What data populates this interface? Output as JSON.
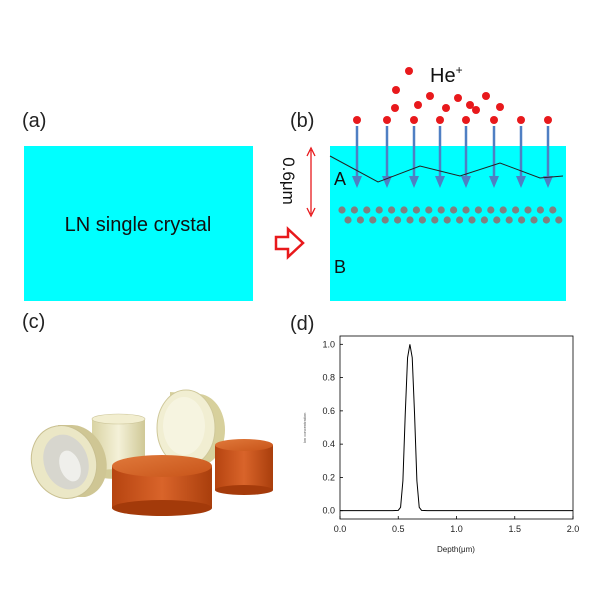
{
  "panels": {
    "a": {
      "label": "(a)",
      "block_text": "LN single crystal",
      "block_color": "#00ffff"
    },
    "b": {
      "label": "(b)",
      "ion_label_main": "He",
      "ion_label_sup": "+",
      "depth_label": "0.6μm",
      "region_a": "A",
      "region_b": "B",
      "block_color": "#00ffff",
      "ion_color": "#e8191c",
      "arrow_color": "#4f7fc3",
      "implant_dot_color": "#808080",
      "depth_arrow_color": "#e8191c"
    },
    "c": {
      "label": "(c)",
      "photo": "lithium-niobate-wafers-photo",
      "colors": {
        "clear": "#e9e4b9",
        "orange": "#c8521a"
      }
    },
    "d": {
      "label": "(d)",
      "line_color": "#000000"
    },
    "transition_arrow_color": "#e8191c"
  },
  "chart_data": {
    "type": "line",
    "title": "",
    "xlabel": "Depth(μm)",
    "ylabel": "Ion concentration",
    "xlim": [
      0.0,
      2.0
    ],
    "ylim": [
      -0.05,
      1.05
    ],
    "xticks": [
      "0.0",
      "0.5",
      "1.0",
      "1.5",
      "2.0"
    ],
    "yticks": [
      "0.0",
      "0.2",
      "0.4",
      "0.6",
      "0.8",
      "1.0"
    ],
    "grid": false,
    "x": [
      0.0,
      0.45,
      0.5,
      0.52,
      0.54,
      0.56,
      0.58,
      0.6,
      0.62,
      0.64,
      0.66,
      0.68,
      0.7,
      0.75,
      2.0
    ],
    "y": [
      0.0,
      0.0,
      0.002,
      0.02,
      0.18,
      0.58,
      0.92,
      1.0,
      0.92,
      0.58,
      0.18,
      0.02,
      0.002,
      0.0,
      0.0
    ]
  }
}
